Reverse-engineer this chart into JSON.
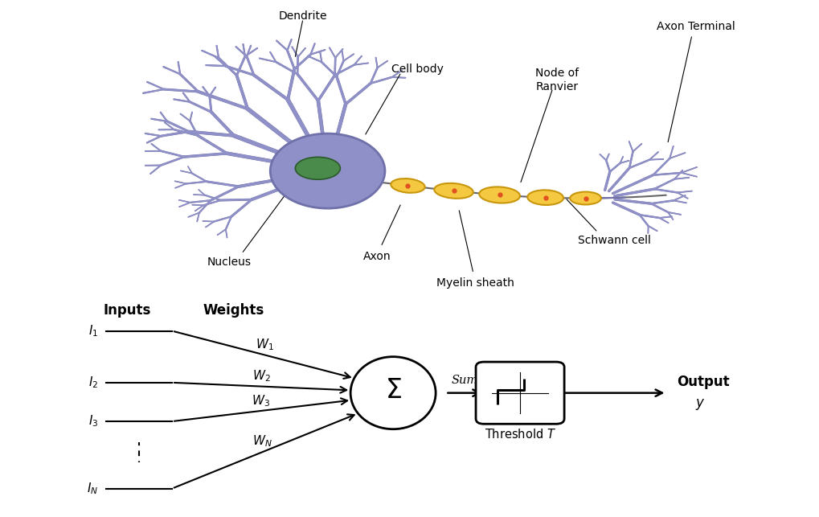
{
  "bg_color": "#ffffff",
  "neuron": {
    "cell_body_color": "#9090c8",
    "cell_body_edge": "#7070aa",
    "axon_color": "#f5c842",
    "axon_edge": "#c8960a",
    "nucleus_color": "#4a8a4a",
    "nucleus_edge": "#2a5a2a",
    "dendrite_color": "#9090c8",
    "dendrite_edge": "#7070aa"
  },
  "diagram": {
    "inputs_label": "Inputs",
    "weights_label": "Weights",
    "sum_text": "Sum",
    "threshold_label": "Threshold ",
    "output_label": "Output",
    "output_var": "y"
  }
}
